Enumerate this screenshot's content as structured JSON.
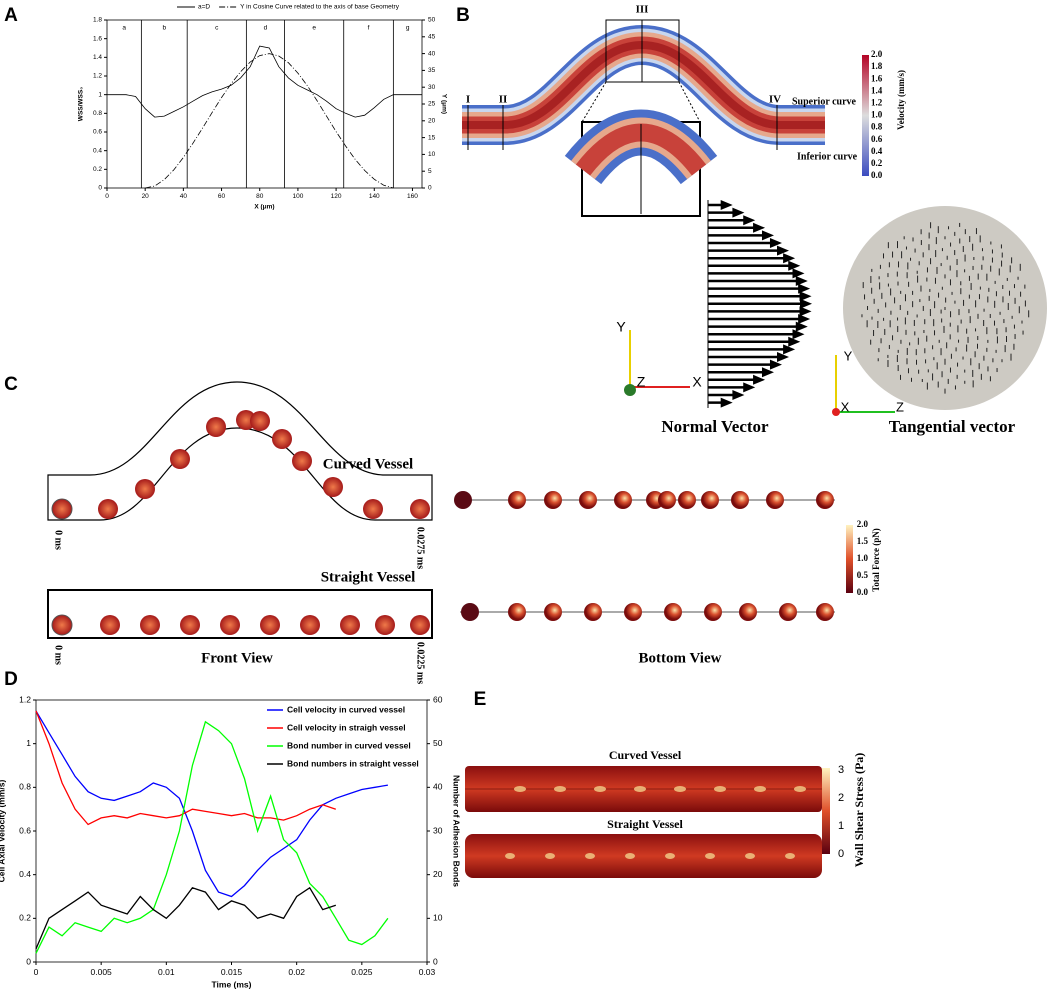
{
  "panels": [
    "A",
    "B",
    "C",
    "D",
    "E"
  ],
  "chart_data": [
    {
      "type": "line",
      "x_label": "X (μm)",
      "y_label": "WSS/WSS₀",
      "y2_label": "Y (μm)",
      "x": [
        0,
        5,
        10,
        15,
        20,
        25,
        30,
        35,
        40,
        45,
        50,
        55,
        60,
        65,
        70,
        75,
        80,
        85,
        90,
        95,
        100,
        105,
        110,
        115,
        120,
        125,
        130,
        135,
        140,
        145,
        150,
        155,
        160,
        165
      ],
      "series": [
        {
          "name": "a=D",
          "color": "#000000",
          "line_style": "solid",
          "values": [
            1.0,
            1.0,
            1.0,
            0.98,
            0.85,
            0.76,
            0.77,
            0.82,
            0.87,
            0.93,
            0.99,
            1.03,
            1.06,
            1.1,
            1.18,
            1.3,
            1.52,
            1.5,
            1.3,
            1.18,
            1.1,
            1.05,
            1.0,
            0.93,
            0.85,
            0.8,
            0.76,
            0.78,
            0.86,
            0.95,
            1.0,
            1.0,
            1.0,
            1.0
          ]
        },
        {
          "name": "Y in Cosine Curve related to the axis of base Geometry",
          "color": "#000000",
          "line_style": "dashdot",
          "axis": "y2",
          "values": [
            null,
            null,
            null,
            null,
            0,
            0.6,
            2.5,
            5.4,
            9.1,
            13.3,
            17.8,
            22.4,
            26.9,
            31,
            34.6,
            37.5,
            39.4,
            40,
            39.3,
            37.3,
            34.2,
            30.4,
            26,
            21.4,
            16.8,
            12.5,
            8.5,
            5.2,
            2.6,
            0.8,
            0,
            null,
            null,
            null
          ]
        }
      ],
      "xlim": [
        0,
        165
      ],
      "xticks": [
        0,
        20,
        40,
        60,
        80,
        100,
        120,
        140,
        160
      ],
      "ylim": [
        0,
        1.8
      ],
      "yticks": [
        0,
        0.2,
        0.4,
        0.6,
        0.8,
        1,
        1.2,
        1.4,
        1.6,
        1.8
      ],
      "y2lim": [
        0,
        50
      ],
      "y2ticks": [
        0,
        5,
        10,
        15,
        20,
        25,
        30,
        35,
        40,
        45,
        50
      ],
      "regions": {
        "labels": [
          "a",
          "b",
          "c",
          "d",
          "e",
          "f",
          "g"
        ],
        "boundaries": [
          18,
          42,
          73,
          93,
          124,
          150
        ]
      },
      "grid": false,
      "legend": "top"
    },
    {
      "type": "line",
      "x_label": "Time (ms)",
      "y_label": "Cell Axial Velocity (mm/s)",
      "y2_label": "Number of Adhesion Bonds",
      "x": [
        0,
        0.001,
        0.002,
        0.003,
        0.004,
        0.005,
        0.006,
        0.007,
        0.008,
        0.009,
        0.01,
        0.011,
        0.012,
        0.013,
        0.014,
        0.015,
        0.016,
        0.017,
        0.018,
        0.019,
        0.02,
        0.021,
        0.022,
        0.023,
        0.024,
        0.025,
        0.026,
        0.027
      ],
      "series": [
        {
          "name": "Cell velocity in curved vessel",
          "color": "#0000ff",
          "line_style": "solid",
          "values": [
            1.15,
            1.05,
            0.95,
            0.85,
            0.78,
            0.75,
            0.74,
            0.76,
            0.78,
            0.82,
            0.8,
            0.75,
            0.6,
            0.42,
            0.32,
            0.3,
            0.35,
            0.42,
            0.48,
            0.52,
            0.56,
            0.65,
            0.72,
            0.75,
            0.77,
            0.79,
            0.8,
            0.81
          ]
        },
        {
          "name": "Cell velocity in straigh vessel",
          "color": "#ff0000",
          "line_style": "solid",
          "values": [
            1.15,
            1.0,
            0.82,
            0.7,
            0.63,
            0.66,
            0.67,
            0.66,
            0.68,
            0.67,
            0.66,
            0.67,
            0.7,
            0.69,
            0.68,
            0.67,
            0.68,
            0.66,
            0.66,
            0.65,
            0.67,
            0.7,
            0.72,
            0.7,
            null,
            null,
            null,
            null
          ]
        },
        {
          "name": "Bond number in curved vessel",
          "color": "#00ff00",
          "line_style": "solid",
          "axis": "y2",
          "values": [
            2,
            8,
            6,
            9,
            8,
            7,
            10,
            9,
            10,
            12,
            20,
            30,
            45,
            55,
            53,
            50,
            42,
            30,
            38,
            28,
            25,
            18,
            15,
            10,
            5,
            4,
            6,
            10
          ]
        },
        {
          "name": "Bond numbers in straight vessel",
          "color": "#000000",
          "line_style": "solid",
          "axis": "y2",
          "values": [
            3,
            10,
            12,
            14,
            16,
            13,
            12,
            11,
            15,
            12,
            10,
            13,
            17,
            16,
            12,
            14,
            13,
            10,
            11,
            10,
            15,
            17,
            12,
            13,
            null,
            null,
            null,
            null
          ]
        }
      ],
      "xlim": [
        0,
        0.03
      ],
      "xticks": [
        0,
        0.005,
        0.01,
        0.015,
        0.02,
        0.025,
        0.03
      ],
      "ylim": [
        0,
        1.2
      ],
      "yticks": [
        0,
        0.2,
        0.4,
        0.6,
        0.8,
        1,
        1.2
      ],
      "y2lim": [
        0,
        60
      ],
      "y2ticks": [
        0,
        10,
        20,
        30,
        40,
        50,
        60
      ],
      "grid": false,
      "legend": "upper right"
    }
  ],
  "panel_b": {
    "sections": [
      "I",
      "II",
      "III",
      "IV"
    ],
    "superior": "Superior curve",
    "inferior": "Inferior curve",
    "colorbar_title": "Velocity (mm/s)",
    "colorbar_ticks": [
      "2.0",
      "1.8",
      "1.6",
      "1.4",
      "1.2",
      "1.0",
      "0.8",
      "0.6",
      "0.4",
      "0.2",
      "0.0"
    ],
    "normal_title": "Normal Vector",
    "tangential_title": "Tangential vector",
    "axes_normal": [
      "Y",
      "Z",
      "X"
    ],
    "axes_tangential": [
      "Y",
      "X",
      "Z"
    ]
  },
  "panel_c": {
    "curved": "Curved Vessel",
    "straight": "Straight Vessel",
    "start": "0 ms",
    "end_curved": "0.0275 ms",
    "end_straight": "0.0225 ms",
    "front": "Front View",
    "bottom": "Bottom View",
    "colorbar_title": "Total Force (pN)",
    "colorbar_ticks": [
      "2.0",
      "1.5",
      "1.0",
      "0.5",
      "0.0"
    ]
  },
  "panel_e": {
    "curved": "Curved Vessel",
    "straight": "Straight Vessel",
    "colorbar_title": "Wall Shear Stress (Pa)",
    "colorbar_ticks": [
      "3",
      "2",
      "1",
      "0"
    ]
  }
}
